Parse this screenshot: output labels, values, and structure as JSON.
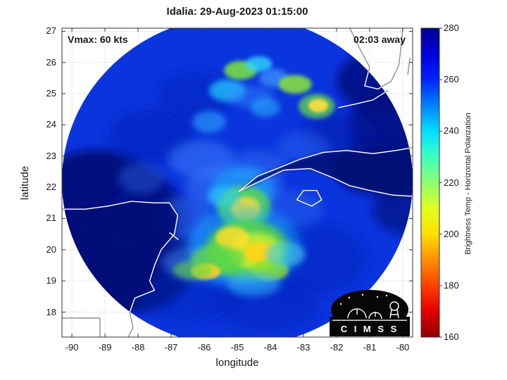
{
  "annotations": {
    "vmax": "Vmax: 60 kts",
    "eta": "02:03 away"
  },
  "logo": {
    "text": "C I M S S"
  },
  "chart_data": {
    "type": "heatmap",
    "title": "Idalia: 29-Aug-2023 01:15:00",
    "storm": {
      "name": "Idalia",
      "timestamp": "29-Aug-2023 01:15:00",
      "vmax_kts": 60,
      "time_offset": "02:03 away"
    },
    "xlabel": "longitude",
    "ylabel": "latitude",
    "xlim": [
      -90.3,
      -79.7
    ],
    "ylim": [
      17.2,
      27.1
    ],
    "x_ticks": [
      -90,
      -89,
      -88,
      -87,
      -86,
      -85,
      -84,
      -83,
      -82,
      -81,
      -80
    ],
    "y_ticks": [
      18,
      19,
      20,
      21,
      22,
      23,
      24,
      25,
      26,
      27
    ],
    "grid": true,
    "colorbar": {
      "label": "Brightness Temp - Horizontal Polarization",
      "min": 160,
      "max": 280,
      "ticks": [
        160,
        180,
        200,
        220,
        240,
        260,
        280
      ],
      "stops": [
        {
          "v": 280,
          "c": "#00008f"
        },
        {
          "v": 270,
          "c": "#0000d6"
        },
        {
          "v": 260,
          "c": "#0023ff"
        },
        {
          "v": 250,
          "c": "#0080ff"
        },
        {
          "v": 240,
          "c": "#00dfff"
        },
        {
          "v": 230,
          "c": "#3fffbf"
        },
        {
          "v": 220,
          "c": "#8fff6f"
        },
        {
          "v": 210,
          "c": "#dfff1f"
        },
        {
          "v": 200,
          "c": "#ffdf00"
        },
        {
          "v": 190,
          "c": "#ff8f00"
        },
        {
          "v": 180,
          "c": "#ff3f00"
        },
        {
          "v": 170,
          "c": "#e10000"
        },
        {
          "v": 160,
          "c": "#8f0000"
        }
      ]
    },
    "swath": {
      "center": [
        -85.0,
        22.2
      ],
      "radius_deg": 5.3,
      "base_color": "#0a34dd",
      "base_temp_k": 259
    },
    "features": [
      {
        "lon": -89.2,
        "lat": 21.0,
        "rx": 2.4,
        "ry": 2.2,
        "c": "#000c78",
        "o": 0.95,
        "b": 6,
        "t": 277
      },
      {
        "lon": -88.2,
        "lat": 19.6,
        "rx": 1.9,
        "ry": 1.6,
        "c": "#000c78",
        "o": 0.9,
        "b": 6,
        "t": 277
      },
      {
        "lon": -87.7,
        "lat": 21.0,
        "rx": 1.3,
        "ry": 1.1,
        "c": "#000f8c",
        "o": 0.75,
        "b": 8,
        "t": 273
      },
      {
        "lon": -80.6,
        "lat": 25.4,
        "rx": 1.4,
        "ry": 1.0,
        "c": "#000d80",
        "o": 0.85,
        "b": 6,
        "t": 276
      },
      {
        "lon": -80.1,
        "lat": 24.0,
        "rx": 1.5,
        "ry": 1.3,
        "c": "#000d80",
        "o": 0.85,
        "b": 6,
        "t": 276
      },
      {
        "lon": -80.5,
        "lat": 22.6,
        "rx": 1.6,
        "ry": 0.9,
        "c": "#000d80",
        "o": 0.8,
        "b": 6,
        "t": 275
      },
      {
        "lon": -79.9,
        "lat": 21.3,
        "rx": 1.0,
        "ry": 0.8,
        "c": "#000d80",
        "o": 0.7,
        "b": 6,
        "t": 274
      },
      {
        "lon": -81.9,
        "lat": 23.7,
        "rx": 1.1,
        "ry": 0.7,
        "c": "#0018a0",
        "o": 0.5,
        "b": 8,
        "t": 269
      },
      {
        "lon": -87.6,
        "lat": 23.6,
        "rx": 1.3,
        "ry": 0.9,
        "c": "#0022b8",
        "o": 0.55,
        "b": 7,
        "t": 266
      },
      {
        "lon": -86.3,
        "lat": 24.9,
        "rx": 1.1,
        "ry": 0.8,
        "c": "#0022b8",
        "o": 0.5,
        "b": 7,
        "t": 266
      },
      {
        "lon": -82.7,
        "lat": 19.7,
        "rx": 1.6,
        "ry": 1.1,
        "c": "#0022b8",
        "o": 0.5,
        "b": 8,
        "t": 266
      },
      {
        "lon": -84.1,
        "lat": 18.2,
        "rx": 1.6,
        "ry": 0.8,
        "c": "#0022b8",
        "o": 0.5,
        "b": 8,
        "t": 266
      },
      {
        "lon": -86.6,
        "lat": 18.5,
        "rx": 1.4,
        "ry": 0.8,
        "c": "#0022b8",
        "o": 0.45,
        "b": 8,
        "t": 266
      },
      {
        "lon": -85.1,
        "lat": 22.0,
        "rx": 1.5,
        "ry": 0.7,
        "c": "#2f6df2",
        "o": 0.65,
        "b": 6,
        "t": 252
      },
      {
        "lon": -86.1,
        "lat": 22.9,
        "rx": 1.0,
        "ry": 0.6,
        "c": "#3f84ff",
        "o": 0.5,
        "b": 6,
        "t": 249
      },
      {
        "lon": -86.6,
        "lat": 21.0,
        "rx": 0.9,
        "ry": 0.7,
        "c": "#2f6df2",
        "o": 0.5,
        "b": 6,
        "t": 252
      },
      {
        "lon": -85.9,
        "lat": 19.6,
        "rx": 1.4,
        "ry": 0.6,
        "c": "#3f84ff",
        "o": 0.55,
        "b": 7,
        "t": 249
      },
      {
        "lon": -84.4,
        "lat": 22.7,
        "rx": 0.9,
        "ry": 0.5,
        "c": "#2f6df2",
        "o": 0.5,
        "b": 6,
        "t": 252
      },
      {
        "lon": -83.3,
        "lat": 21.3,
        "rx": 0.9,
        "ry": 0.6,
        "c": "#2f6df2",
        "o": 0.4,
        "b": 7,
        "t": 253
      },
      {
        "lon": -87.9,
        "lat": 22.3,
        "rx": 0.7,
        "ry": 0.5,
        "c": "#2f6df2",
        "o": 0.4,
        "b": 6,
        "t": 252
      },
      {
        "lon": -83.0,
        "lat": 23.3,
        "rx": 0.8,
        "ry": 0.5,
        "c": "#2f6df2",
        "o": 0.4,
        "b": 6,
        "t": 252
      },
      {
        "lon": -85.85,
        "lat": 24.1,
        "rx": 0.5,
        "ry": 0.35,
        "c": "#2fa8ff",
        "o": 0.6,
        "b": 4,
        "t": 243
      },
      {
        "lon": -85.3,
        "lat": 25.1,
        "rx": 0.55,
        "ry": 0.35,
        "c": "#21c8ff",
        "o": 0.75,
        "b": 4,
        "t": 238
      },
      {
        "lon": -84.9,
        "lat": 25.75,
        "rx": 0.5,
        "ry": 0.3,
        "c": "#7ce83c",
        "o": 0.85,
        "b": 3,
        "t": 220
      },
      {
        "lon": -84.35,
        "lat": 25.95,
        "rx": 0.4,
        "ry": 0.25,
        "c": "#2fd8ff",
        "o": 0.8,
        "b": 3,
        "t": 236
      },
      {
        "lon": -83.9,
        "lat": 25.5,
        "rx": 0.45,
        "ry": 0.3,
        "c": "#3f9aff",
        "o": 0.7,
        "b": 4,
        "t": 246
      },
      {
        "lon": -83.25,
        "lat": 25.3,
        "rx": 0.5,
        "ry": 0.3,
        "c": "#8ce838",
        "o": 0.85,
        "b": 3,
        "t": 218
      },
      {
        "lon": -82.6,
        "lat": 24.6,
        "rx": 0.55,
        "ry": 0.4,
        "c": "#6adf45",
        "o": 0.7,
        "b": 3,
        "t": 222
      },
      {
        "lon": -82.55,
        "lat": 24.62,
        "rx": 0.3,
        "ry": 0.22,
        "c": "#ffe23a",
        "o": 0.9,
        "b": 2,
        "t": 204
      },
      {
        "lon": -84.6,
        "lat": 24.9,
        "rx": 0.7,
        "ry": 0.35,
        "c": "#2f86ff",
        "o": 0.5,
        "b": 5,
        "t": 248
      },
      {
        "lon": -84.15,
        "lat": 24.55,
        "rx": 0.45,
        "ry": 0.3,
        "c": "#2fb8ff",
        "o": 0.55,
        "b": 4,
        "t": 240
      },
      {
        "lon": -84.85,
        "lat": 21.9,
        "rx": 0.95,
        "ry": 0.75,
        "c": "#18c0ff",
        "o": 0.5,
        "b": 6,
        "t": 240
      },
      {
        "lon": -84.8,
        "lat": 21.35,
        "rx": 0.8,
        "ry": 0.7,
        "c": "#5fdd45",
        "o": 0.8,
        "b": 4,
        "t": 222
      },
      {
        "lon": -84.75,
        "lat": 21.3,
        "rx": 0.45,
        "ry": 0.4,
        "c": "#ffda32",
        "o": 0.9,
        "b": 3,
        "t": 205
      },
      {
        "lon": -85.4,
        "lat": 21.7,
        "rx": 0.5,
        "ry": 0.35,
        "c": "#2fd0ff",
        "o": 0.55,
        "b": 4,
        "t": 238
      },
      {
        "lon": -84.8,
        "lat": 20.1,
        "rx": 1.7,
        "ry": 1.3,
        "c": "#18b8ff",
        "o": 0.5,
        "b": 8,
        "t": 240
      },
      {
        "lon": -84.7,
        "lat": 20.0,
        "rx": 1.25,
        "ry": 0.95,
        "c": "#55d845",
        "o": 0.85,
        "b": 5,
        "t": 222
      },
      {
        "lon": -84.45,
        "lat": 19.95,
        "rx": 0.8,
        "ry": 0.6,
        "c": "#c8ee2e",
        "o": 0.85,
        "b": 4,
        "t": 210
      },
      {
        "lon": -84.35,
        "lat": 19.9,
        "rx": 0.45,
        "ry": 0.35,
        "c": "#ffd51e",
        "o": 0.95,
        "b": 3,
        "t": 201
      },
      {
        "lon": -85.15,
        "lat": 20.35,
        "rx": 0.5,
        "ry": 0.4,
        "c": "#ffdf2a",
        "o": 0.85,
        "b": 3,
        "t": 204
      },
      {
        "lon": -85.6,
        "lat": 19.7,
        "rx": 0.8,
        "ry": 0.45,
        "c": "#62d943",
        "o": 0.75,
        "b": 4,
        "t": 221
      },
      {
        "lon": -85.95,
        "lat": 19.3,
        "rx": 0.45,
        "ry": 0.25,
        "c": "#ffd51e",
        "o": 0.85,
        "b": 2,
        "t": 202
      },
      {
        "lon": -86.35,
        "lat": 19.35,
        "rx": 0.6,
        "ry": 0.3,
        "c": "#62d943",
        "o": 0.6,
        "b": 4,
        "t": 222
      },
      {
        "lon": -84.0,
        "lat": 19.35,
        "rx": 0.55,
        "ry": 0.35,
        "c": "#8ce02f",
        "o": 0.8,
        "b": 3,
        "t": 215
      },
      {
        "lon": -83.55,
        "lat": 19.85,
        "rx": 0.6,
        "ry": 0.4,
        "c": "#45c8ef",
        "o": 0.6,
        "b": 4,
        "t": 235
      },
      {
        "lon": -84.5,
        "lat": 18.9,
        "rx": 0.8,
        "ry": 0.4,
        "c": "#35b8ff",
        "o": 0.5,
        "b": 5,
        "t": 242
      }
    ],
    "land": [
      {
        "name": "yucatan-peninsula",
        "c": "#000c78",
        "o": 0.95,
        "points": [
          [
            -90.3,
            21.3
          ],
          [
            -89.6,
            21.3
          ],
          [
            -88.9,
            21.4
          ],
          [
            -88.2,
            21.55
          ],
          [
            -87.5,
            21.5
          ],
          [
            -87.05,
            21.5
          ],
          [
            -86.8,
            21.1
          ],
          [
            -86.9,
            20.5
          ],
          [
            -87.3,
            20.0
          ],
          [
            -87.5,
            19.5
          ],
          [
            -87.65,
            19.0
          ],
          [
            -87.5,
            18.7
          ],
          [
            -88.1,
            18.45
          ],
          [
            -88.25,
            18.0
          ],
          [
            -88.15,
            17.5
          ],
          [
            -88.3,
            17.2
          ],
          [
            -90.3,
            17.2
          ]
        ]
      },
      {
        "name": "cuba",
        "c": "#000a70",
        "o": 0.85,
        "points": [
          [
            -84.95,
            21.87
          ],
          [
            -84.4,
            22.35
          ],
          [
            -83.8,
            22.6
          ],
          [
            -83.1,
            22.9
          ],
          [
            -82.4,
            23.12
          ],
          [
            -81.7,
            23.18
          ],
          [
            -80.9,
            23.08
          ],
          [
            -80.2,
            23.18
          ],
          [
            -79.55,
            23.3
          ],
          [
            -79.55,
            21.7
          ],
          [
            -80.3,
            21.75
          ],
          [
            -81.0,
            21.9
          ],
          [
            -81.6,
            22.05
          ],
          [
            -82.1,
            22.3
          ],
          [
            -82.8,
            22.6
          ],
          [
            -83.6,
            22.55
          ],
          [
            -84.2,
            22.25
          ],
          [
            -84.7,
            22.0
          ]
        ]
      }
    ],
    "coastlines": [
      {
        "name": "cuba-coast",
        "closed": true,
        "points": [
          [
            -84.95,
            21.87
          ],
          [
            -84.4,
            22.35
          ],
          [
            -83.8,
            22.6
          ],
          [
            -83.1,
            22.9
          ],
          [
            -82.4,
            23.12
          ],
          [
            -81.7,
            23.18
          ],
          [
            -80.9,
            23.08
          ],
          [
            -80.2,
            23.18
          ],
          [
            -79.55,
            23.3
          ],
          [
            -79.55,
            21.7
          ],
          [
            -80.3,
            21.75
          ],
          [
            -81.0,
            21.9
          ],
          [
            -81.6,
            22.05
          ],
          [
            -82.1,
            22.3
          ],
          [
            -82.8,
            22.6
          ],
          [
            -83.6,
            22.55
          ],
          [
            -84.2,
            22.25
          ],
          [
            -84.7,
            22.0
          ]
        ]
      },
      {
        "name": "isle-of-youth",
        "closed": true,
        "points": [
          [
            -83.2,
            21.6
          ],
          [
            -83.0,
            21.9
          ],
          [
            -82.6,
            21.9
          ],
          [
            -82.45,
            21.6
          ],
          [
            -82.75,
            21.4
          ]
        ]
      },
      {
        "name": "yucatan-coast",
        "closed": false,
        "points": [
          [
            -90.3,
            21.3
          ],
          [
            -89.6,
            21.3
          ],
          [
            -88.9,
            21.4
          ],
          [
            -88.2,
            21.55
          ],
          [
            -87.5,
            21.5
          ],
          [
            -87.05,
            21.5
          ],
          [
            -86.8,
            21.1
          ],
          [
            -86.9,
            20.5
          ],
          [
            -87.3,
            20.0
          ],
          [
            -87.5,
            19.5
          ],
          [
            -87.65,
            19.0
          ],
          [
            -87.5,
            18.7
          ],
          [
            -88.1,
            18.45
          ],
          [
            -88.25,
            18.0
          ],
          [
            -88.15,
            17.5
          ],
          [
            -88.3,
            17.2
          ]
        ]
      },
      {
        "name": "cozumel",
        "closed": false,
        "points": [
          [
            -87.05,
            20.55
          ],
          [
            -86.78,
            20.32
          ]
        ]
      },
      {
        "name": "florida-coast",
        "closed": false,
        "points": [
          [
            -81.6,
            27.1
          ],
          [
            -81.3,
            26.45
          ],
          [
            -81.0,
            25.85
          ],
          [
            -81.15,
            25.25
          ],
          [
            -80.75,
            25.15
          ],
          [
            -80.35,
            25.4
          ],
          [
            -80.12,
            25.9
          ],
          [
            -80.05,
            26.5
          ],
          [
            -80.0,
            27.1
          ]
        ]
      },
      {
        "name": "florida-keys",
        "closed": false,
        "points": [
          [
            -80.45,
            25.1
          ],
          [
            -80.9,
            24.8
          ],
          [
            -81.5,
            24.65
          ],
          [
            -81.95,
            24.55
          ]
        ]
      },
      {
        "name": "bahamas-bank",
        "closed": false,
        "points": [
          [
            -79.78,
            26.15
          ],
          [
            -79.85,
            25.6
          ]
        ]
      },
      {
        "name": "border-mexico-guatemala",
        "closed": false,
        "points": [
          [
            -90.3,
            17.81
          ],
          [
            -89.15,
            17.81
          ]
        ]
      },
      {
        "name": "border-guatemala-belize",
        "closed": false,
        "points": [
          [
            -89.15,
            17.81
          ],
          [
            -89.15,
            17.2
          ]
        ]
      }
    ]
  }
}
